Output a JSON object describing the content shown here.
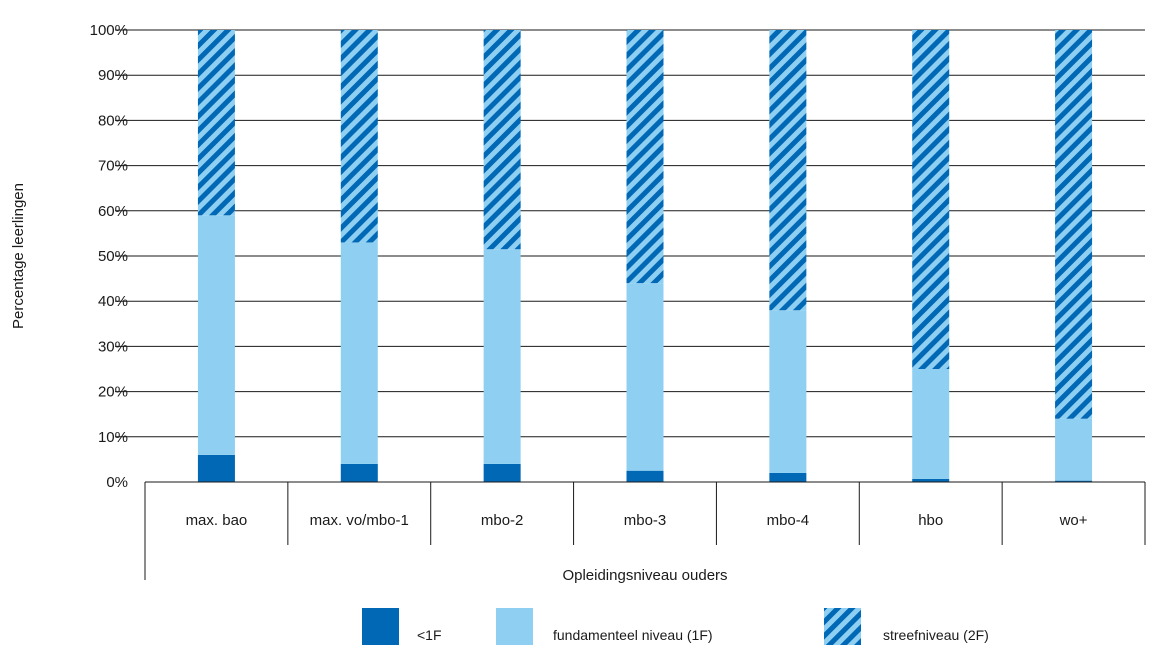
{
  "chart_data": {
    "type": "bar",
    "stacked": true,
    "xlabel": "Opleidingsniveau ouders",
    "ylabel": "Percentage leerlingen",
    "ylim": [
      0,
      100
    ],
    "yticks": [
      "0%",
      "10%",
      "20%",
      "30%",
      "40%",
      "50%",
      "60%",
      "70%",
      "80%",
      "90%",
      "100%"
    ],
    "categories": [
      "max. bao",
      "max. vo/mbo-1",
      "mbo-2",
      "mbo-3",
      "mbo-4",
      "hbo",
      "wo+"
    ],
    "series": [
      {
        "name": "<1F",
        "values": [
          6,
          4,
          4,
          2.5,
          2,
          0.7,
          0.3
        ],
        "color": "#0068b4",
        "pattern": "solid"
      },
      {
        "name": "fundamenteel niveau (1F)",
        "values": [
          53,
          49,
          47.5,
          41.5,
          36,
          24.3,
          13.7
        ],
        "color": "#8fd0f2",
        "pattern": "solid"
      },
      {
        "name": "streefniveau (2F)",
        "values": [
          41,
          47,
          48.5,
          56,
          62,
          75,
          86
        ],
        "color": "#0068b4",
        "pattern": "hatched",
        "background": "#8fd0f2"
      }
    ],
    "grid": true,
    "legend_position": "bottom"
  }
}
